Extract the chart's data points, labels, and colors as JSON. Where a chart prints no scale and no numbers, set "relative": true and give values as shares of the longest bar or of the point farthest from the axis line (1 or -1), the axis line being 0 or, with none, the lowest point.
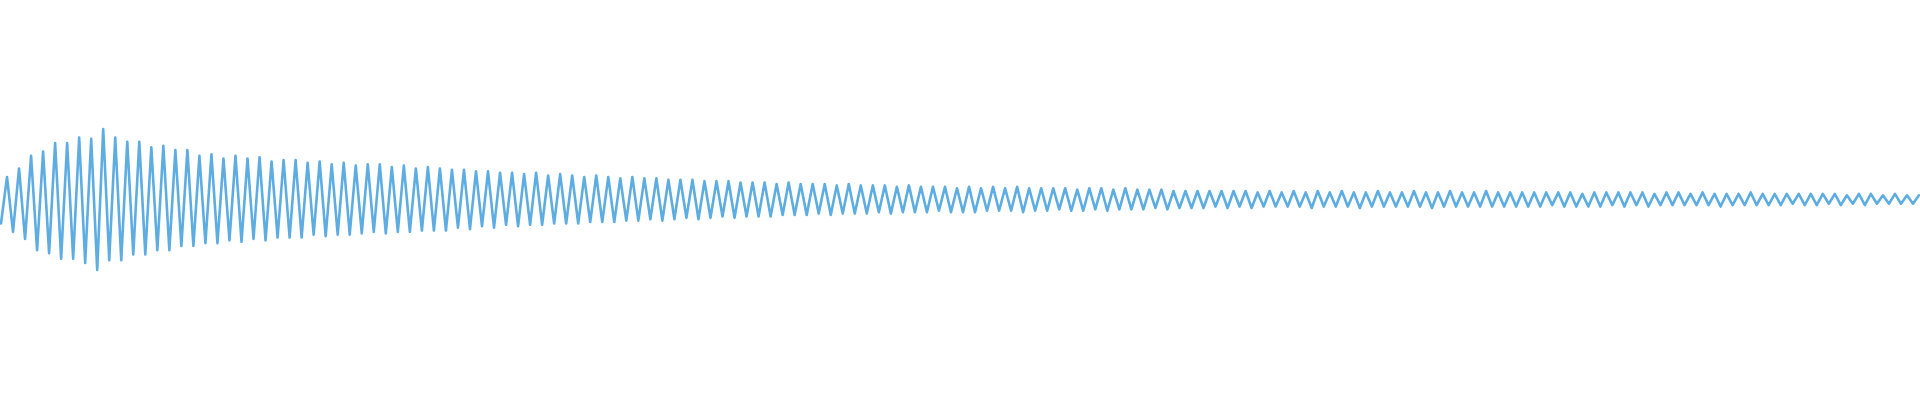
{
  "chart_data": {
    "type": "line",
    "relative": true,
    "color": "#5dade2",
    "marker": "none",
    "categories": [
      null,
      null,
      null,
      null,
      null,
      null,
      null,
      null,
      null,
      null,
      null,
      null,
      null,
      null,
      null,
      null,
      null,
      null,
      null,
      null,
      null,
      null,
      null,
      null,
      null,
      null,
      null,
      null,
      null,
      null,
      null,
      null,
      null,
      null,
      null,
      null,
      null,
      null,
      null,
      null,
      null,
      null,
      null,
      null,
      null,
      null,
      null,
      null,
      null,
      null,
      null,
      null,
      null,
      null,
      null,
      null,
      null,
      null,
      null,
      null,
      null,
      null,
      null,
      null,
      null,
      null,
      null,
      null,
      null,
      null,
      null,
      null,
      null,
      null,
      null,
      null,
      null,
      null,
      null,
      null,
      null,
      null,
      null,
      null,
      null,
      null,
      null,
      null,
      null,
      null,
      null,
      null,
      null,
      null,
      null,
      null,
      null,
      null,
      null,
      null,
      null,
      null,
      null,
      null,
      null,
      null,
      null,
      null,
      null,
      null,
      null,
      null,
      null,
      null,
      null,
      null,
      null,
      null,
      null,
      null,
      null,
      null,
      null,
      null,
      null,
      null,
      null,
      null,
      null,
      null,
      null,
      null,
      null,
      null,
      null,
      null,
      null,
      null,
      null,
      null,
      null,
      null,
      null,
      null,
      null,
      null,
      null,
      null,
      null,
      null,
      null,
      null,
      null,
      null,
      null,
      null,
      null,
      null,
      null,
      null,
      null,
      null,
      null,
      null,
      null,
      null,
      null,
      null,
      null,
      null,
      null,
      null,
      null,
      null,
      null,
      null,
      null,
      null,
      null,
      null,
      null,
      null,
      null,
      null,
      null,
      null,
      null,
      null,
      null,
      null,
      null,
      null,
      null,
      null,
      null,
      null,
      null,
      null,
      null,
      null,
      null,
      null,
      null,
      null,
      null,
      null,
      null,
      null,
      null,
      null,
      null,
      null,
      null,
      null,
      null,
      null,
      null,
      null,
      null,
      null,
      null,
      null,
      null,
      null,
      null,
      null,
      null,
      null,
      null,
      null,
      null,
      null,
      null,
      null,
      null,
      null,
      null,
      null,
      null,
      null,
      null,
      null,
      null,
      null,
      null,
      null,
      null,
      null,
      null,
      null,
      null,
      null,
      null,
      null,
      null,
      null,
      null,
      null,
      null,
      null,
      null,
      null,
      null,
      null,
      null,
      null,
      null,
      null,
      null,
      null,
      null,
      null,
      null,
      null,
      null,
      null,
      null,
      null,
      null,
      null,
      null,
      null,
      null,
      null,
      null,
      null,
      null,
      null,
      null,
      null,
      null,
      null,
      null,
      null,
      null,
      null,
      null,
      null,
      null,
      null,
      null,
      null,
      null,
      null,
      null,
      null,
      null,
      null,
      null,
      null,
      null,
      null,
      null,
      null,
      null,
      null,
      null,
      null,
      null,
      null
    ],
    "values": [
      0.33,
      0.66,
      0.27,
      0.72,
      0.22,
      0.81,
      0.14,
      0.84,
      0.12,
      0.9,
      0.08,
      0.9,
      0.08,
      0.94,
      0.05,
      0.93,
      0,
      1,
      0.07,
      0.94,
      0.07,
      0.91,
      0.11,
      0.91,
      0.11,
      0.87,
      0.14,
      0.88,
      0.14,
      0.85,
      0.17,
      0.85,
      0.17,
      0.81,
      0.19,
      0.82,
      0.19,
      0.79,
      0.21,
      0.81,
      0.2,
      0.79,
      0.22,
      0.8,
      0.21,
      0.77,
      0.23,
      0.78,
      0.23,
      0.78,
      0.23,
      0.76,
      0.25,
      0.77,
      0.24,
      0.75,
      0.25,
      0.76,
      0.25,
      0.74,
      0.26,
      0.75,
      0.27,
      0.75,
      0.26,
      0.73,
      0.27,
      0.74,
      0.27,
      0.72,
      0.28,
      0.73,
      0.28,
      0.72,
      0.28,
      0.71,
      0.3,
      0.71,
      0.29,
      0.7,
      0.31,
      0.7,
      0.3,
      0.69,
      0.32,
      0.69,
      0.31,
      0.68,
      0.32,
      0.69,
      0.32,
      0.67,
      0.33,
      0.68,
      0.33,
      0.67,
      0.33,
      0.66,
      0.34,
      0.67,
      0.34,
      0.66,
      0.34,
      0.65,
      0.35,
      0.66,
      0.35,
      0.65,
      0.36,
      0.65,
      0.35,
      0.64,
      0.36,
      0.64,
      0.37,
      0.64,
      0.36,
      0.63,
      0.37,
      0.63,
      0.38,
      0.63,
      0.37,
      0.62,
      0.38,
      0.62,
      0.38,
      0.62,
      0.38,
      0.61,
      0.39,
      0.62,
      0.39,
      0.61,
      0.39,
      0.61,
      0.4,
      0.61,
      0.39,
      0.6,
      0.4,
      0.61,
      0.4,
      0.6,
      0.4,
      0.6,
      0.41,
      0.6,
      0.4,
      0.59,
      0.41,
      0.6,
      0.41,
      0.59,
      0.41,
      0.59,
      0.42,
      0.59,
      0.41,
      0.58,
      0.41,
      0.59,
      0.41,
      0.58,
      0.42,
      0.59,
      0.42,
      0.58,
      0.42,
      0.59,
      0.41,
      0.58,
      0.42,
      0.58,
      0.42,
      0.58,
      0.43,
      0.58,
      0.42,
      0.57,
      0.42,
      0.58,
      0.43,
      0.58,
      0.42,
      0.57,
      0.43,
      0.58,
      0.43,
      0.57,
      0.43,
      0.57,
      0.44,
      0.57,
      0.43,
      0.56,
      0.44,
      0.56,
      0.44,
      0.56,
      0.44,
      0.56,
      0.45,
      0.56,
      0.44,
      0.56,
      0.45,
      0.56,
      0.44,
      0.55,
      0.45,
      0.56,
      0.45,
      0.55,
      0.45,
      0.56,
      0.45,
      0.55,
      0.44,
      0.56,
      0.45,
      0.55,
      0.45,
      0.56,
      0.45,
      0.55,
      0.44,
      0.55,
      0.45,
      0.56,
      0.45,
      0.55,
      0.45,
      0.55,
      0.45,
      0.56,
      0.45,
      0.55,
      0.44,
      0.55,
      0.45,
      0.56,
      0.45,
      0.55,
      0.45,
      0.55,
      0.45,
      0.56,
      0.45,
      0.55,
      0.45,
      0.55,
      0.45,
      0.55,
      0.45,
      0.55,
      0.45,
      0.55,
      0.46,
      0.55,
      0.45,
      0.55,
      0.45,
      0.54,
      0.45,
      0.55,
      0.45,
      0.55,
      0.46,
      0.55,
      0.45,
      0.55,
      0.46,
      0.55,
      0.45,
      0.54,
      0.46,
      0.55,
      0.46,
      0.55,
      0.46,
      0.54,
      0.46,
      0.55,
      0.46,
      0.54,
      0.45,
      0.54,
      0.46,
      0.54,
      0.46,
      0.55,
      0.46,
      0.54,
      0.46,
      0.54,
      0.46,
      0.54,
      0.47,
      0.54,
      0.46,
      0.54,
      0.46,
      0.54,
      0.47,
      0.54,
      0.46,
      0.53,
      0.47,
      0.54,
      0.46,
      0.54,
      0.47,
      0.53,
      0.47,
      0.54,
      0.47,
      0.53,
      0.47,
      0.53
    ]
  }
}
